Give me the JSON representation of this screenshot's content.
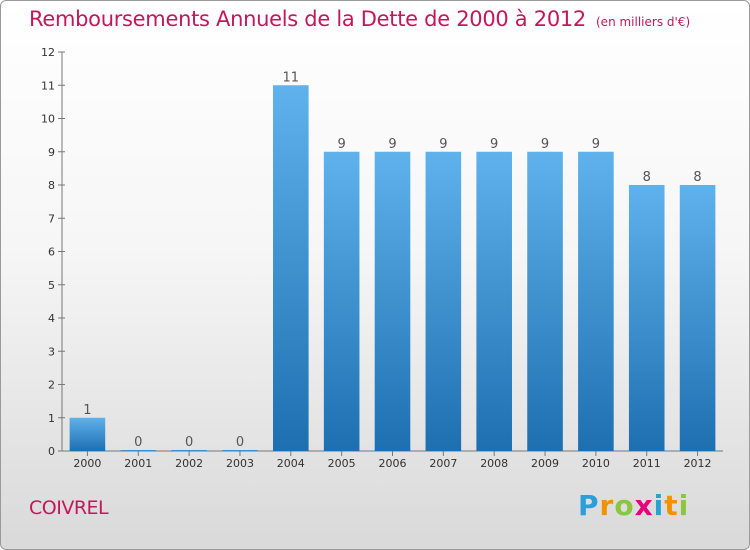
{
  "header": {
    "title": "Remboursements Annuels de la Dette de 2000 à 2012",
    "subtitle": "(en milliers d'€)"
  },
  "place": "COIVREL",
  "logo": {
    "letters": [
      "P",
      "r",
      "o",
      "x",
      "i",
      "t",
      "i"
    ],
    "colors": [
      "#2a9fd8",
      "#f39200",
      "#8cc63f",
      "#e6007e",
      "#2a9fd8",
      "#f39200",
      "#8cc63f"
    ]
  },
  "colors": {
    "bar_top": "#5fb2ec",
    "bar_bottom": "#1e6fb0",
    "text": "#c2185b"
  },
  "chart_data": {
    "type": "bar",
    "categories": [
      "2000",
      "2001",
      "2002",
      "2003",
      "2004",
      "2005",
      "2006",
      "2007",
      "2008",
      "2009",
      "2010",
      "2011",
      "2012"
    ],
    "values": [
      1,
      0,
      0,
      0,
      11,
      9,
      9,
      9,
      9,
      9,
      9,
      8,
      8
    ],
    "value_labels": [
      "1",
      "0",
      "0",
      "0",
      "11",
      "9",
      "9",
      "9",
      "9",
      "9",
      "9",
      "8",
      "8"
    ],
    "yticks": [
      "0",
      "1",
      "2",
      "3",
      "4",
      "5",
      "6",
      "7",
      "8",
      "9",
      "10",
      "11",
      "12"
    ],
    "ylim": [
      0,
      12
    ],
    "xlabel": "",
    "ylabel": "",
    "grid": false,
    "legend": "none"
  }
}
